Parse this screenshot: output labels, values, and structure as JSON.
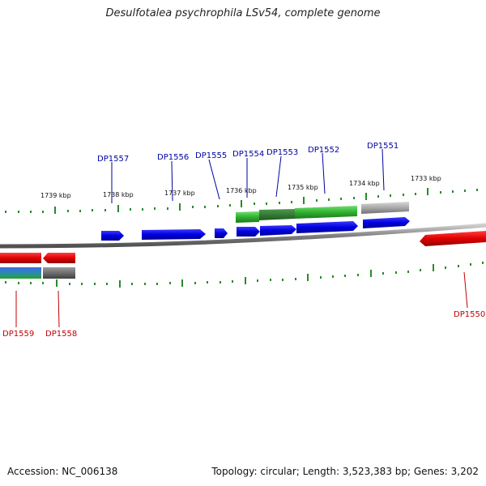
{
  "title": "Desulfotalea psychrophila LSv54, complete genome",
  "footer": {
    "accession": "Accession: NC_006138",
    "topology": "Topology: circular; Length: 3,523,383 bp; Genes: 3,202"
  },
  "scale_labels": [
    "1739 kbp",
    "1738 kbp",
    "1737 kbp",
    "1736 kbp",
    "1735 kbp",
    "1734 kbp",
    "1733 kbp"
  ],
  "genes_top": [
    "DP1557",
    "DP1556",
    "DP1555",
    "DP1554",
    "DP1553",
    "DP1552",
    "DP1551"
  ],
  "genes_bottom": [
    "DP1559",
    "DP1558",
    "DP1550"
  ],
  "colors": {
    "forward_gene": "#1010e8",
    "reverse_gene": "#e80000",
    "rna_gene": "#30b030",
    "other_gene": "#a8a8a8",
    "ticks": "#2a8a2a",
    "label_top": "#0000a0",
    "label_bottom": "#c00000"
  }
}
